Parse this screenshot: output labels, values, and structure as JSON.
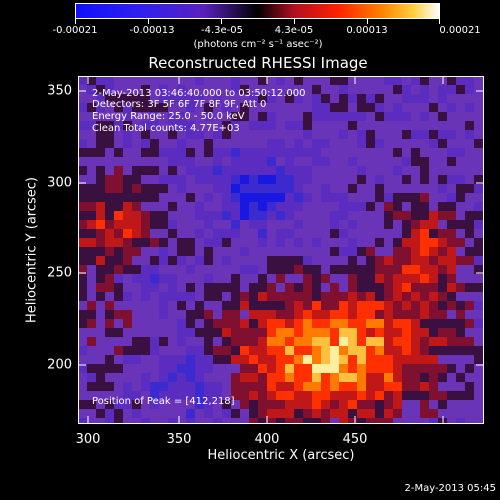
{
  "colorbar": {
    "tick_labels": [
      "-0.00021",
      "-0.00013",
      "-4.3e-05",
      "4.3e-05",
      "0.00013",
      "0.00021"
    ],
    "units": "(photons cm⁻² s⁻¹ asec⁻²)"
  },
  "title": "Reconstructed RHESSI Image",
  "overlay": {
    "line1": "2-May-2013 03:46:40.000 to 03:50:12.000",
    "line2": "Detectors: 3F 5F 6F 7F 8F 9F, Att 0",
    "line3": "Energy Range: 25.0 - 50.0 keV",
    "line4": "Clean     Total counts: 4.77E+03",
    "peak": "Position of Peak = [412,218]"
  },
  "axes": {
    "x_label": "Heliocentric X (arcsec)",
    "y_label": "Heliocentric Y (arcsec)",
    "x_ticks": [
      "300",
      "350",
      "400",
      "450"
    ],
    "y_ticks": [
      "350",
      "300",
      "250",
      "200"
    ]
  },
  "footer": {
    "timestamp": "2-May-2013 05:45"
  },
  "colors": {
    "frame": "#ffffff",
    "background": "#000000"
  }
}
